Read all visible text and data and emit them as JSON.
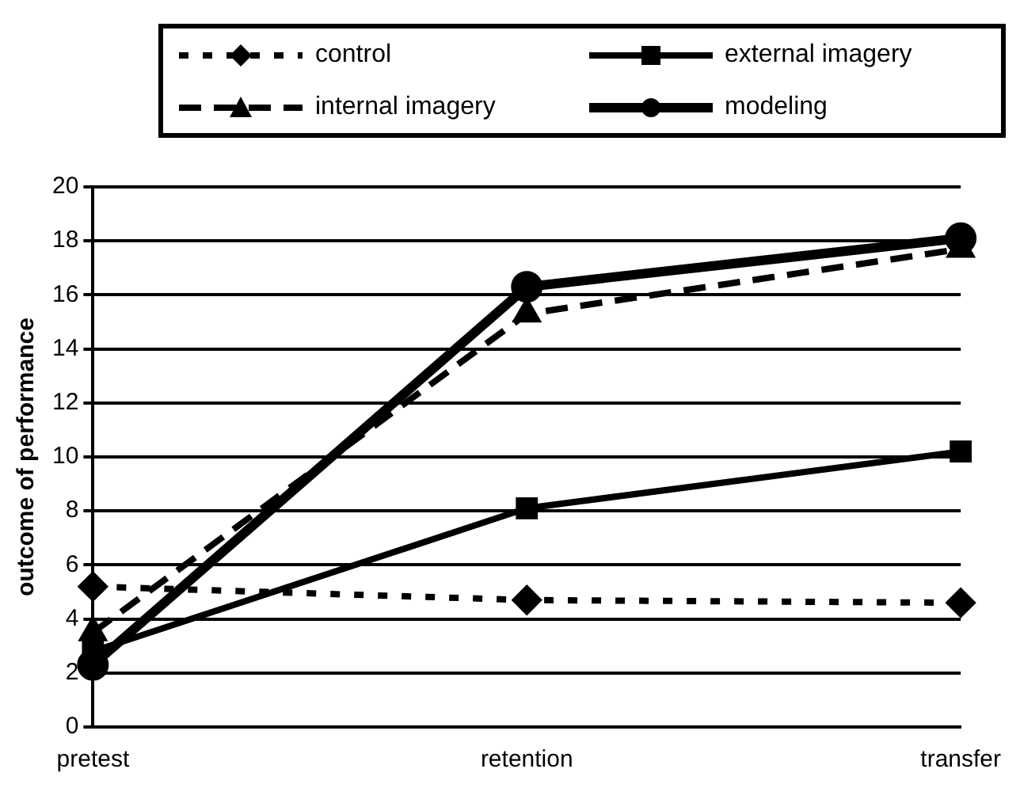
{
  "chart_data": {
    "type": "line",
    "ylabel": "outcome of performance",
    "categories": [
      "pretest",
      "retention",
      "transfer"
    ],
    "ylim": [
      0,
      20
    ],
    "yticks": [
      0,
      2,
      4,
      6,
      8,
      10,
      12,
      14,
      16,
      18,
      20
    ],
    "grid": "y",
    "legend": "top",
    "series": [
      {
        "name": "control",
        "color": "#000000",
        "values": [
          5.2,
          4.7,
          4.6
        ],
        "marker": "diamond",
        "line_style": "dotted"
      },
      {
        "name": "external imagery",
        "color": "#000000",
        "values": [
          2.8,
          8.1,
          10.2
        ],
        "marker": "square",
        "line_style": "solid"
      },
      {
        "name": "internal imagery",
        "color": "#000000",
        "values": [
          3.5,
          15.3,
          17.7
        ],
        "marker": "triangle",
        "line_style": "dashed"
      },
      {
        "name": "modeling",
        "color": "#000000",
        "values": [
          2.3,
          16.3,
          18.1
        ],
        "marker": "circle",
        "line_style": "solid"
      }
    ]
  }
}
